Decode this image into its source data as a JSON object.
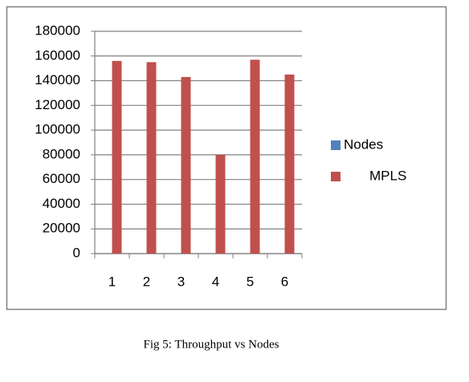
{
  "chart_data": {
    "type": "bar",
    "categories": [
      "1",
      "2",
      "3",
      "4",
      "5",
      "6"
    ],
    "series": [
      {
        "name": "Nodes",
        "color": "#4f81bd",
        "values": [
          0,
          0,
          0,
          0,
          0,
          0
        ]
      },
      {
        "name": "MPLS",
        "color": "#c0504d",
        "values": [
          156000,
          155000,
          143000,
          80000,
          157000,
          145000
        ]
      }
    ],
    "ylim": [
      0,
      180000
    ],
    "yticks": [
      0,
      20000,
      40000,
      60000,
      80000,
      100000,
      120000,
      140000,
      160000,
      180000
    ],
    "grid": true,
    "legend": "right",
    "caption": "Fig 5: Throughput vs Nodes"
  }
}
